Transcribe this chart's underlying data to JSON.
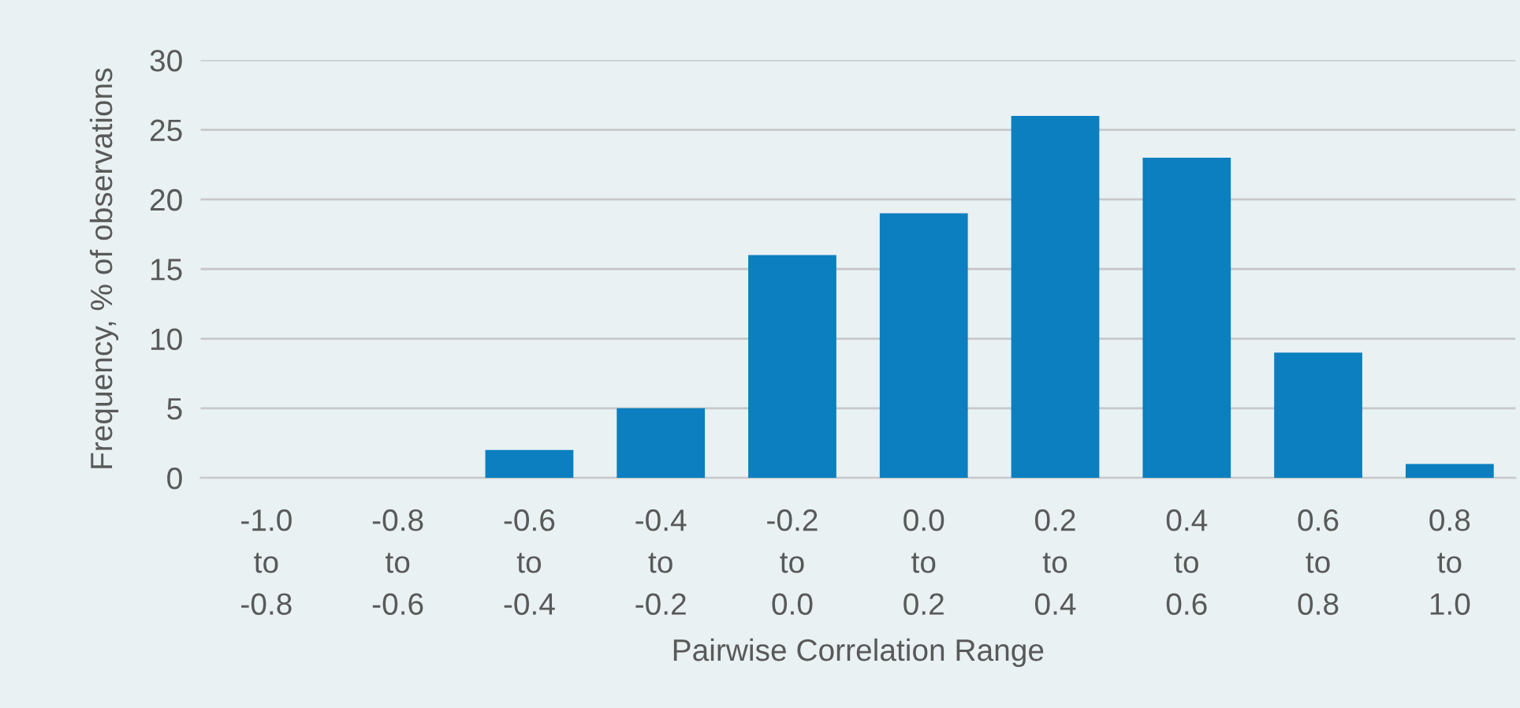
{
  "chart_data": {
    "type": "bar",
    "categories": [
      "-1.0\nto\n-0.8",
      "-0.8\nto\n-0.6",
      "-0.6\nto\n-0.4",
      "-0.4\nto\n-0.2",
      "-0.2\nto\n0.0",
      "0.0\nto\n0.2",
      "0.2\nto\n0.4",
      "0.4\nto\n0.6",
      "0.6\nto\n0.8",
      "0.8\nto\n1.0"
    ],
    "values": [
      0,
      0,
      2,
      5,
      16,
      19,
      26,
      23,
      9,
      1
    ],
    "color": "#0b7fbf",
    "xlabel": "Pairwise Correlation Range",
    "ylabel": "Frequency, % of observations",
    "ylim": [
      0,
      30
    ],
    "yticks": [
      0,
      5,
      10,
      15,
      20,
      25,
      30
    ],
    "grid": "y",
    "legend": false
  }
}
